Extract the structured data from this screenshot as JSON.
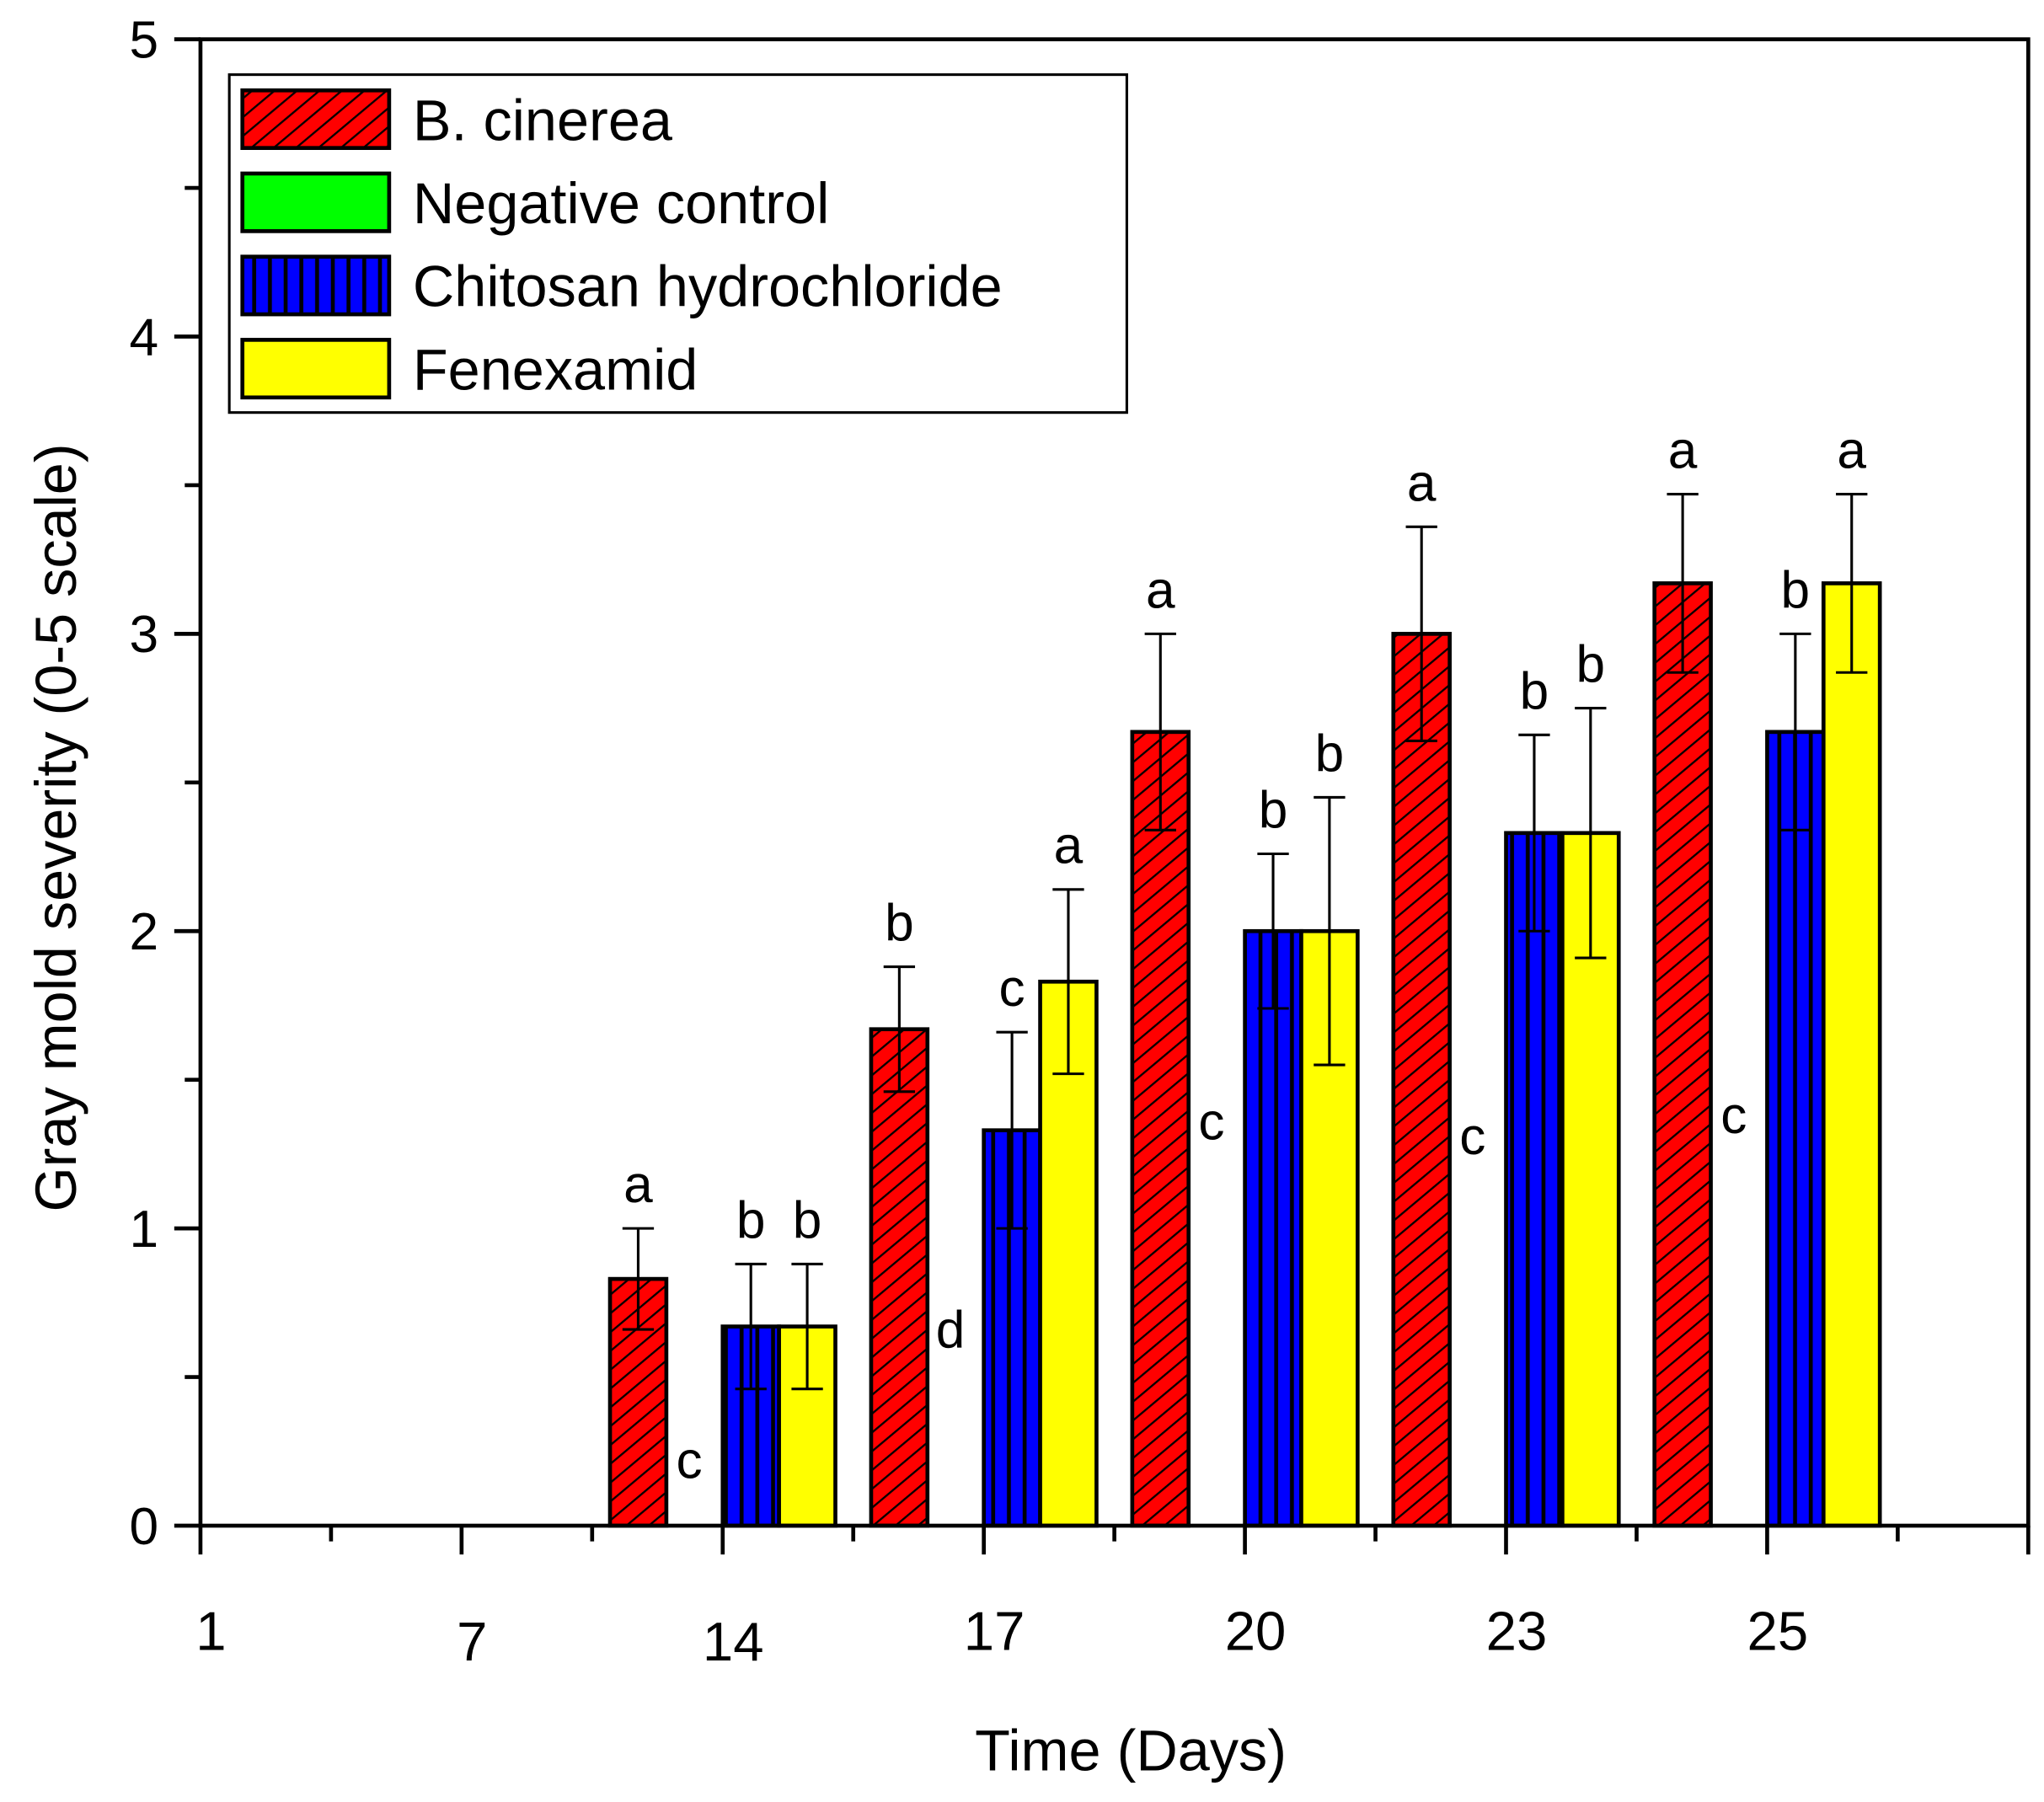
{
  "chart_data": {
    "type": "bar",
    "title": "",
    "xlabel": "Time (Days)",
    "ylabel": "Gray mold severity (0-5 scale)",
    "ylim": [
      0,
      5
    ],
    "yticks": [
      "0",
      "1",
      "2",
      "3",
      "4",
      "5"
    ],
    "categories": [
      "1",
      "7",
      "14",
      "17",
      "20",
      "23",
      "25"
    ],
    "legend_position": "top-left",
    "grid": false,
    "series": [
      {
        "name": "B. cinerea",
        "color": "#ff0000",
        "pattern": "diagonal-hatch",
        "values": [
          0,
          0,
          0.83,
          1.67,
          2.67,
          3.0,
          3.17
        ],
        "errors": [
          null,
          null,
          0.17,
          0.21,
          0.33,
          0.36,
          0.3
        ],
        "letters": [
          "",
          "",
          "a",
          "b",
          "a",
          "a",
          "a"
        ]
      },
      {
        "name": "Negative control",
        "color": "#00ff00",
        "pattern": "solid",
        "values": [
          0,
          0,
          0,
          0,
          0,
          0,
          0
        ],
        "errors": [
          null,
          null,
          null,
          null,
          null,
          null,
          null
        ],
        "letters": [
          "",
          "",
          "c",
          "d",
          "c",
          "c",
          "c"
        ]
      },
      {
        "name": "Chitosan hydrochloride",
        "color": "#0000ff",
        "pattern": "vertical-lines",
        "values": [
          0,
          0,
          0.67,
          1.33,
          2.0,
          2.33,
          2.67
        ],
        "errors": [
          null,
          null,
          0.21,
          0.33,
          0.26,
          0.33,
          0.33
        ],
        "letters": [
          "",
          "",
          "b",
          "c",
          "b",
          "b",
          "b"
        ]
      },
      {
        "name": "Fenexamid",
        "color": "#ffff00",
        "pattern": "solid",
        "values": [
          0,
          0,
          0.67,
          1.83,
          2.0,
          2.33,
          3.17
        ],
        "errors": [
          null,
          null,
          0.21,
          0.31,
          0.45,
          0.42,
          0.3
        ],
        "letters": [
          "",
          "",
          "b",
          "a",
          "b",
          "b",
          "a"
        ]
      }
    ]
  }
}
